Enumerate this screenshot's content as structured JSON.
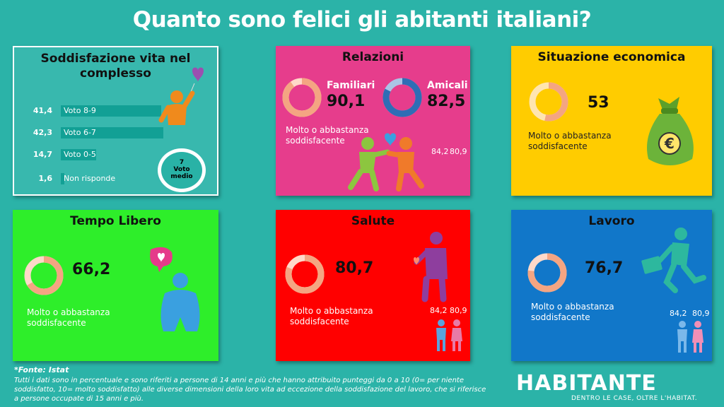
{
  "title": "Quanto sono felici gli abitanti italiani?",
  "vita": {
    "title_line1": "Soddisfazione vita nel",
    "title_line2": "complesso",
    "bars": [
      {
        "value": "41,4",
        "label": "Voto 8-9",
        "num": 41.4
      },
      {
        "value": "42,3",
        "label": "Voto 6-7",
        "num": 42.3
      },
      {
        "value": "14,7",
        "label": "Voto 0-5",
        "num": 14.7
      },
      {
        "value": "1,6",
        "label": "Non risponde",
        "num": 1.6
      }
    ],
    "media_value": "7",
    "media_line1": "Voto",
    "media_line2": "medio"
  },
  "relazioni": {
    "title": "Relazioni",
    "familiari_label": "Familiari",
    "familiari_value": "90,1",
    "amicali_label": "Amicali",
    "amicali_value": "82,5",
    "caption_line1": "Molto o abbastanza",
    "caption_line2": "soddisfacente",
    "m_value": "84,2",
    "f_value": "80,9"
  },
  "economica": {
    "title": "Situazione economica",
    "value": "53",
    "caption_line1": "Molto o abbastanza",
    "caption_line2": "soddisfacente"
  },
  "tempo": {
    "title": "Tempo Libero",
    "value": "66,2",
    "caption_line1": "Molto o abbastanza",
    "caption_line2": "soddisfacente"
  },
  "salute": {
    "title": "Salute",
    "value": "80,7",
    "caption_line1": "Molto o abbastanza",
    "caption_line2": "soddisfacente",
    "m_value": "84,2",
    "f_value": "80,9"
  },
  "lavoro": {
    "title": "Lavoro",
    "value": "76,7",
    "caption_line1": "Molto o abbastanza",
    "caption_line2": "soddisfacente",
    "m_value": "84,2",
    "f_value": "80,9"
  },
  "footer": {
    "source": "*Fonte: Istat",
    "line1": "Tutti i dati sono in percentuale e sono riferiti a persone di 14 anni e più che hanno attribuito punteggi da 0 a 10 (0= per niente",
    "line2": "soddisfatto, 10= molto soddisfatto) alle diverse dimensioni della loro vita ad eccezione della soddisfazione del lavoro, che si riferisce",
    "line3": "a persone occupate di 15 anni e più."
  },
  "brand": {
    "logo": "HABITANTE",
    "tagline": "DENTRO LE CASE, OLTRE L'HABITAT."
  },
  "colors": {
    "background": "#2bb3a8",
    "relazioni": "#e63d8c",
    "economica": "#ffcc00",
    "tempo": "#2eee2a",
    "salute": "#ff0000",
    "lavoro": "#1177c9",
    "ring": "#f4a582"
  }
}
